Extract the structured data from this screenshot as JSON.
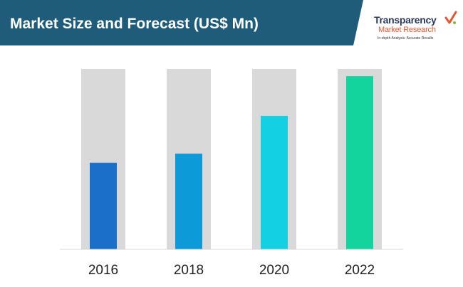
{
  "header": {
    "title": "Market Size and Forecast (US$ Mn)",
    "banner_color": "#1e5c7a"
  },
  "logo": {
    "line1": "Transparency",
    "line2": "Market Research",
    "tagline": "In-depth Analysis. Accurate Results"
  },
  "chart_data": {
    "type": "bar",
    "categories": [
      "2016",
      "2018",
      "2020",
      "2022"
    ],
    "values": [
      48,
      53,
      74,
      96
    ],
    "ylim": [
      0,
      100
    ],
    "grid": false,
    "legend": "none",
    "bar_colors": [
      "#1a6fc9",
      "#0c9bd8",
      "#13d1e0",
      "#13d49c"
    ],
    "background_bar_color": "#d9d9d9"
  }
}
